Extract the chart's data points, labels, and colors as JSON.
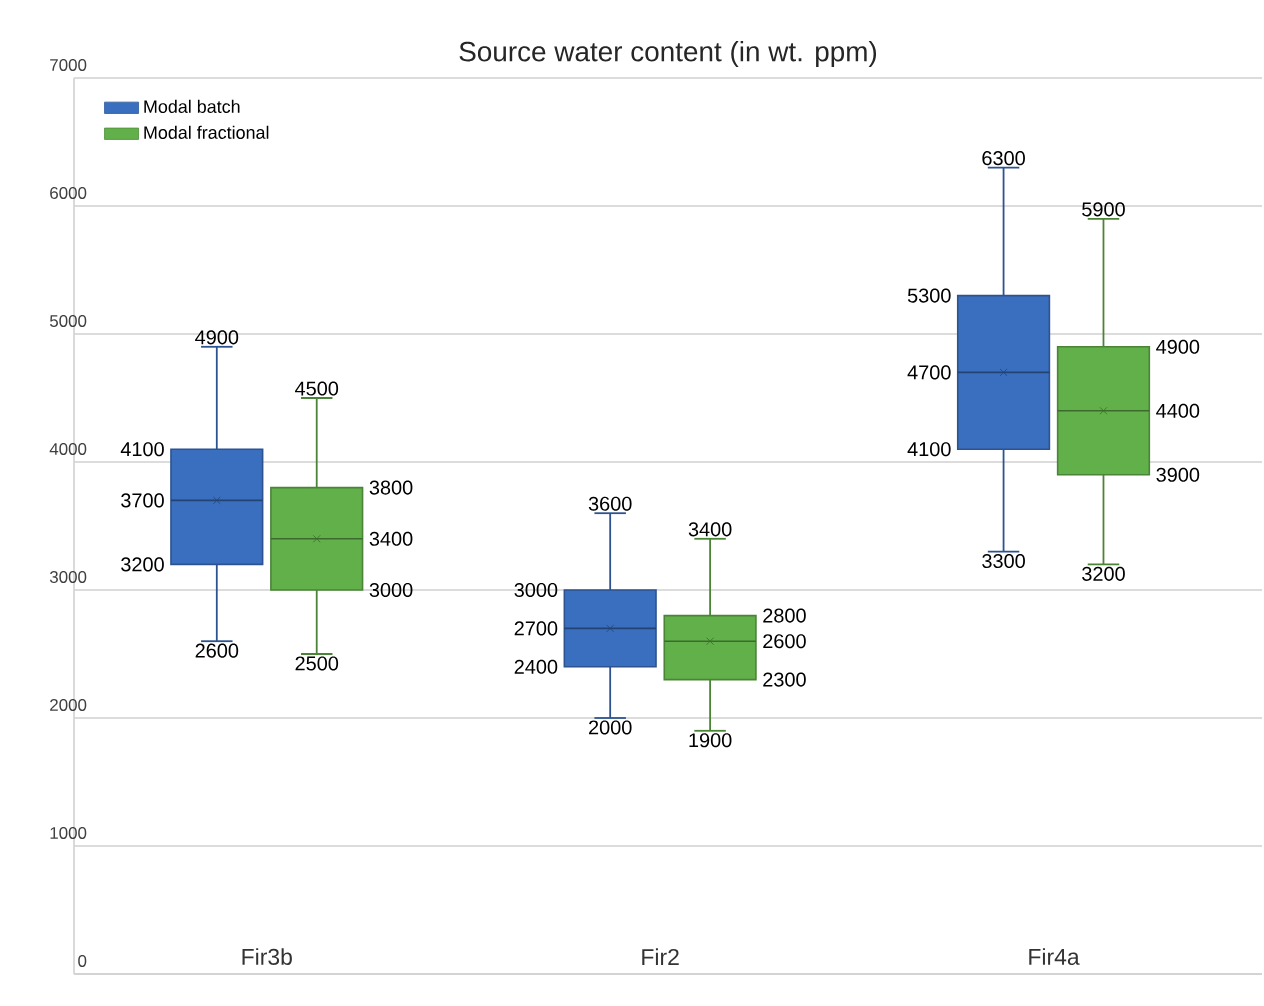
{
  "chart_data": {
    "type": "box",
    "title": "Source water content (in wt. ppm)",
    "categories": [
      "Fir3b",
      "Fir2",
      "Fir4a"
    ],
    "series": [
      {
        "name": "Modal batch",
        "color": "#3a6fbf",
        "boxes": [
          {
            "low": 2600,
            "q1": 3200,
            "median": 3700,
            "q3": 4100,
            "high": 4900,
            "mean": 3700
          },
          {
            "low": 2000,
            "q1": 2400,
            "median": 2700,
            "q3": 3000,
            "high": 3600,
            "mean": 2700
          },
          {
            "low": 3300,
            "q1": 4100,
            "median": 4700,
            "q3": 5300,
            "high": 6300,
            "mean": 4700
          }
        ]
      },
      {
        "name": "Modal fractional",
        "color": "#62b04a",
        "boxes": [
          {
            "low": 2500,
            "q1": 3000,
            "median": 3400,
            "q3": 3800,
            "high": 4500,
            "mean": 3400
          },
          {
            "low": 1900,
            "q1": 2300,
            "median": 2600,
            "q3": 2800,
            "high": 3400,
            "mean": 2600
          },
          {
            "low": 3200,
            "q1": 3900,
            "median": 4400,
            "q3": 4900,
            "high": 5900,
            "mean": 4400
          }
        ]
      }
    ],
    "annotations": [
      "4900",
      "4100",
      "3700",
      "3200",
      "2600",
      "3600",
      "3000",
      "2700",
      "2400",
      "2000",
      "6300",
      "5300",
      "4700",
      "4100",
      "3300",
      "4500",
      "3800",
      "3400",
      "3000",
      "2500",
      "3400",
      "2800",
      "2600",
      "2300",
      "1900",
      "5900",
      "4900",
      "4400",
      "3900",
      "3200"
    ],
    "ylim": [
      0,
      7000
    ],
    "yticks": [
      0,
      1000,
      2000,
      3000,
      4000,
      5000,
      6000,
      7000
    ],
    "grid": "y",
    "legend": "top left"
  }
}
